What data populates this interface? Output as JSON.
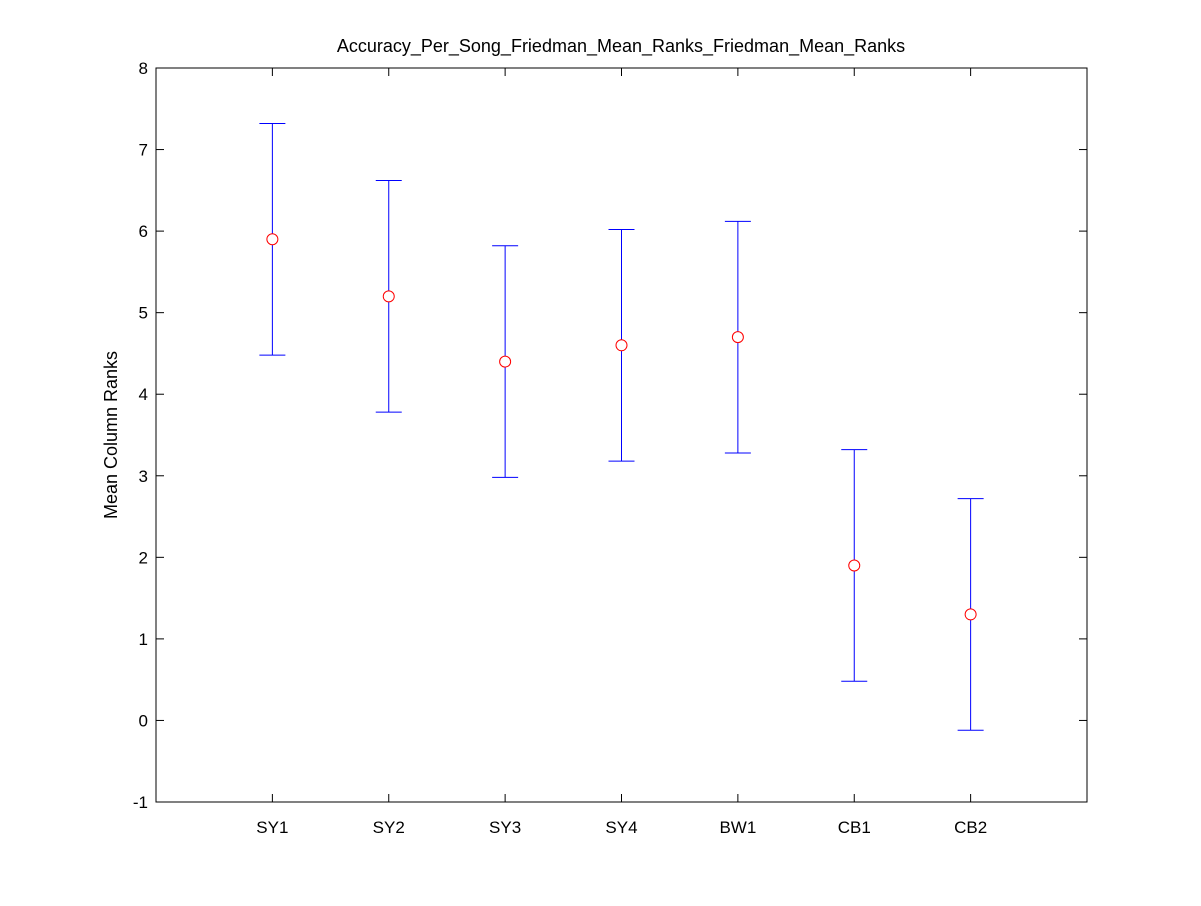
{
  "chart_data": {
    "type": "scatter",
    "title": "Accuracy_Per_Song_Friedman_Mean_Ranks_Friedman_Mean_Ranks",
    "xlabel": "",
    "ylabel": "Mean Column Ranks",
    "categories": [
      "SY1",
      "SY2",
      "SY3",
      "SY4",
      "BW1",
      "CB1",
      "CB2"
    ],
    "series": [
      {
        "mean": [
          5.9,
          5.2,
          4.4,
          4.6,
          4.7,
          1.9,
          1.3
        ],
        "lower": [
          4.48,
          3.78,
          2.98,
          3.18,
          3.28,
          0.48,
          -0.12
        ],
        "upper": [
          7.32,
          6.62,
          5.82,
          6.02,
          6.12,
          3.32,
          2.72
        ]
      }
    ],
    "ylim": [
      -1,
      8
    ],
    "yticks": [
      -1,
      0,
      1,
      2,
      3,
      4,
      5,
      6,
      7,
      8
    ],
    "ytick_labels": [
      "-1",
      "0",
      "1",
      "2",
      "3",
      "4",
      "5",
      "6",
      "7",
      "8"
    ],
    "grid": false,
    "colors": {
      "errorbar": "#0000ff",
      "marker": "#ff0000",
      "axes": "#000000"
    }
  }
}
